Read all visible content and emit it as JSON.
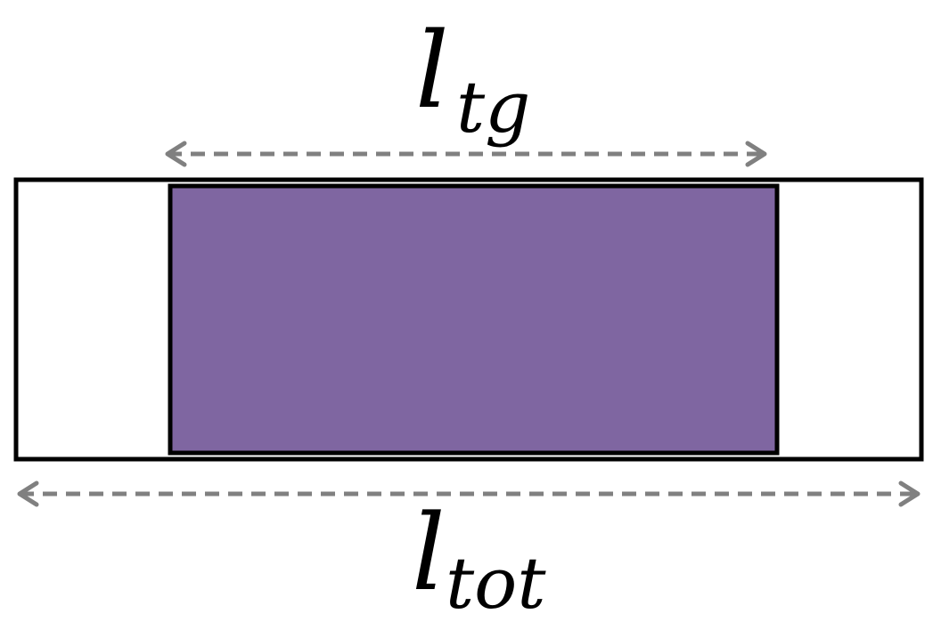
{
  "diagram": {
    "top_label": {
      "base": "l",
      "subscript": "tg"
    },
    "bottom_label": {
      "base": "l",
      "subscript": "tot"
    },
    "colors": {
      "inner_fill": "#7f66a1",
      "outline": "#000000",
      "arrow": "#808080",
      "background": "#ffffff"
    }
  }
}
